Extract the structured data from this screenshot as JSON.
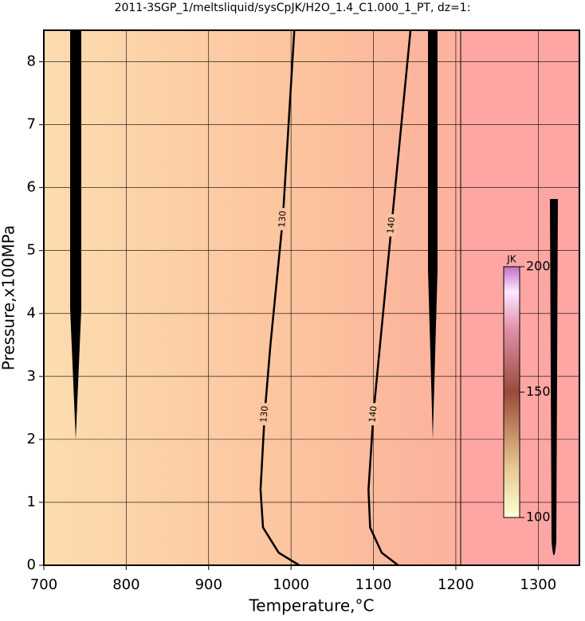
{
  "chart_data": {
    "type": "contour",
    "title": "2011-3SGP_1/meltsliquid/sysCpJK/H2O_1.4_C1.000_1_PT, dz=1:",
    "x_label": "Temperature,°C",
    "y_label": "Pressure,x100MPa",
    "xlim": [
      700,
      1350
    ],
    "ylim": [
      0,
      8.5
    ],
    "xticks": [
      700,
      800,
      900,
      1000,
      1100,
      1200,
      1300
    ],
    "yticks": [
      0,
      1,
      2,
      3,
      4,
      5,
      6,
      7,
      8
    ],
    "grid": true,
    "contours": [
      {
        "level": 130,
        "color": "#000000",
        "x": [
          1004,
          990,
          975,
          968,
          963,
          966,
          985,
          1010
        ],
        "y": [
          8.5,
          5.5,
          3.5,
          2.4,
          1.2,
          0.6,
          0.2,
          0
        ]
      },
      {
        "level": 140,
        "color": "#000000",
        "x": [
          1145,
          1122,
          1108,
          1100,
          1094,
          1096,
          1110,
          1130
        ],
        "y": [
          8.5,
          5.4,
          3.5,
          2.4,
          1.2,
          0.6,
          0.2,
          0
        ]
      }
    ],
    "colorbar": {
      "label": "JK",
      "clim": [
        100,
        200
      ],
      "ticks": [
        100,
        150,
        200
      ]
    }
  }
}
